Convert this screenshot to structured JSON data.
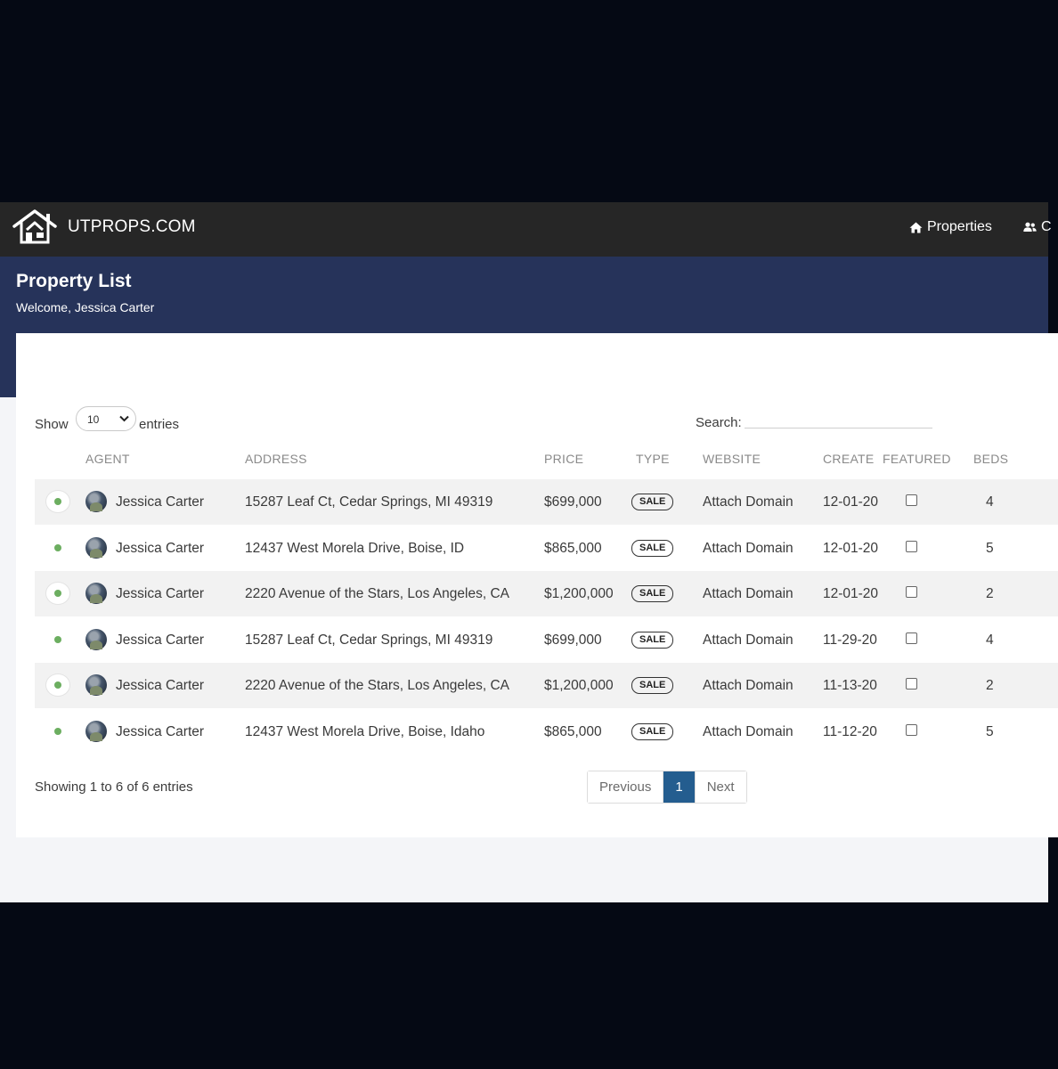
{
  "navbar": {
    "brand": "UTPROPS.COM",
    "links": [
      {
        "label": "Properties",
        "icon": "home-icon"
      },
      {
        "label": "C",
        "icon": "users-icon"
      }
    ]
  },
  "header": {
    "title": "Property List",
    "welcome": "Welcome, Jessica Carter"
  },
  "controls": {
    "show_label": "Show",
    "entries_label": "entries",
    "length_value": "10",
    "search_label": "Search:",
    "search_value": ""
  },
  "table": {
    "columns": [
      "AGENT",
      "ADDRESS",
      "PRICE",
      "TYPE",
      "WEBSITE",
      "CREATE",
      "FEATURED",
      "BEDS"
    ],
    "rows": [
      {
        "agent": "Jessica Carter",
        "address": "15287 Leaf Ct, Cedar Springs, MI 49319",
        "price": "$699,000",
        "type": "SALE",
        "website": "Attach Domain",
        "create": "12-01-20",
        "featured": false,
        "beds": "4"
      },
      {
        "agent": "Jessica Carter",
        "address": "12437 West Morela Drive, Boise, ID",
        "price": "$865,000",
        "type": "SALE",
        "website": "Attach Domain",
        "create": "12-01-20",
        "featured": false,
        "beds": "5"
      },
      {
        "agent": "Jessica Carter",
        "address": "2220 Avenue of the Stars, Los Angeles, CA",
        "price": "$1,200,000",
        "type": "SALE",
        "website": "Attach Domain",
        "create": "12-01-20",
        "featured": false,
        "beds": "2"
      },
      {
        "agent": "Jessica Carter",
        "address": "15287 Leaf Ct, Cedar Springs, MI 49319",
        "price": "$699,000",
        "type": "SALE",
        "website": "Attach Domain",
        "create": "11-29-20",
        "featured": false,
        "beds": "4"
      },
      {
        "agent": "Jessica Carter",
        "address": "2220 Avenue of the Stars, Los Angeles, CA",
        "price": "$1,200,000",
        "type": "SALE",
        "website": "Attach Domain",
        "create": "11-13-20",
        "featured": false,
        "beds": "2"
      },
      {
        "agent": "Jessica Carter",
        "address": "12437 West Morela Drive, Boise, Idaho",
        "price": "$865,000",
        "type": "SALE",
        "website": "Attach Domain",
        "create": "11-12-20",
        "featured": false,
        "beds": "5"
      }
    ]
  },
  "footer": {
    "info": "Showing 1 to 6 of 6 entries",
    "previous": "Previous",
    "current_page": "1",
    "next": "Next"
  },
  "colors": {
    "navbar": "#262626",
    "header": "#26335a",
    "active_page": "#245d8f",
    "status_dot": "#6cae60"
  }
}
